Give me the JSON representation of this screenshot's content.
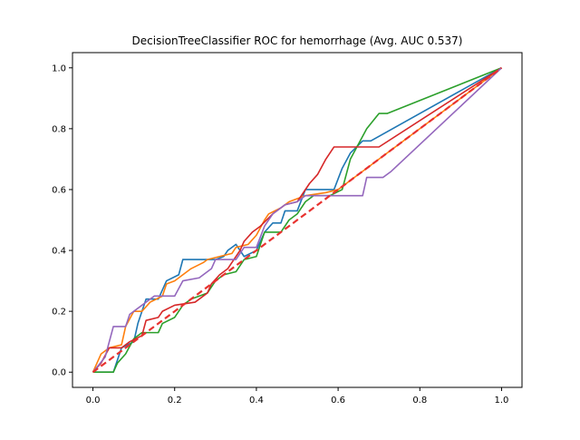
{
  "chart_data": {
    "type": "line",
    "title": "DecisionTreeClassifier ROC for hemorrhage (Avg. AUC 0.537)",
    "xlabel": "",
    "ylabel": "",
    "xlim": [
      -0.05,
      1.05
    ],
    "ylim": [
      -0.05,
      1.05
    ],
    "xticks": [
      "0.0",
      "0.2",
      "0.4",
      "0.6",
      "0.8",
      "1.0"
    ],
    "yticks": [
      "0.0",
      "0.2",
      "0.4",
      "0.6",
      "0.8",
      "1.0"
    ],
    "grid": false,
    "legend": "none",
    "series": [
      {
        "color": "#1f77b4",
        "style": "solid",
        "points": [
          [
            0,
            0
          ],
          [
            0.05,
            0
          ],
          [
            0.06,
            0.04
          ],
          [
            0.07,
            0.08
          ],
          [
            0.1,
            0.1
          ],
          [
            0.11,
            0.16
          ],
          [
            0.13,
            0.24
          ],
          [
            0.16,
            0.24
          ],
          [
            0.18,
            0.3
          ],
          [
            0.21,
            0.32
          ],
          [
            0.22,
            0.37
          ],
          [
            0.3,
            0.37
          ],
          [
            0.32,
            0.38
          ],
          [
            0.33,
            0.4
          ],
          [
            0.35,
            0.42
          ],
          [
            0.37,
            0.38
          ],
          [
            0.4,
            0.4
          ],
          [
            0.42,
            0.46
          ],
          [
            0.44,
            0.49
          ],
          [
            0.46,
            0.49
          ],
          [
            0.47,
            0.53
          ],
          [
            0.5,
            0.53
          ],
          [
            0.52,
            0.6
          ],
          [
            0.59,
            0.6
          ],
          [
            0.61,
            0.67
          ],
          [
            0.63,
            0.72
          ],
          [
            0.66,
            0.76
          ],
          [
            0.68,
            0.76
          ],
          [
            1,
            1
          ]
        ]
      },
      {
        "color": "#ff7f0e",
        "style": "solid",
        "points": [
          [
            0,
            0
          ],
          [
            0.02,
            0.06
          ],
          [
            0.04,
            0.08
          ],
          [
            0.07,
            0.09
          ],
          [
            0.08,
            0.15
          ],
          [
            0.1,
            0.2
          ],
          [
            0.12,
            0.2
          ],
          [
            0.14,
            0.23
          ],
          [
            0.17,
            0.25
          ],
          [
            0.18,
            0.29
          ],
          [
            0.2,
            0.3
          ],
          [
            0.22,
            0.32
          ],
          [
            0.24,
            0.34
          ],
          [
            0.27,
            0.36
          ],
          [
            0.28,
            0.37
          ],
          [
            0.31,
            0.38
          ],
          [
            0.34,
            0.39
          ],
          [
            0.35,
            0.41
          ],
          [
            0.38,
            0.42
          ],
          [
            0.4,
            0.45
          ],
          [
            0.42,
            0.5
          ],
          [
            0.43,
            0.52
          ],
          [
            0.46,
            0.54
          ],
          [
            0.48,
            0.56
          ],
          [
            0.5,
            0.57
          ],
          [
            0.52,
            0.58
          ],
          [
            0.57,
            0.59
          ],
          [
            0.6,
            0.6
          ],
          [
            0.64,
            0.64
          ],
          [
            0.67,
            0.67
          ],
          [
            0.7,
            0.7
          ],
          [
            1,
            1
          ]
        ]
      },
      {
        "color": "#2ca02c",
        "style": "solid",
        "points": [
          [
            0,
            0
          ],
          [
            0.05,
            0
          ],
          [
            0.06,
            0.03
          ],
          [
            0.08,
            0.06
          ],
          [
            0.1,
            0.11
          ],
          [
            0.12,
            0.13
          ],
          [
            0.16,
            0.13
          ],
          [
            0.17,
            0.16
          ],
          [
            0.2,
            0.18
          ],
          [
            0.22,
            0.22
          ],
          [
            0.24,
            0.24
          ],
          [
            0.28,
            0.26
          ],
          [
            0.3,
            0.3
          ],
          [
            0.32,
            0.32
          ],
          [
            0.35,
            0.33
          ],
          [
            0.37,
            0.37
          ],
          [
            0.4,
            0.38
          ],
          [
            0.42,
            0.46
          ],
          [
            0.46,
            0.46
          ],
          [
            0.48,
            0.5
          ],
          [
            0.5,
            0.52
          ],
          [
            0.52,
            0.56
          ],
          [
            0.54,
            0.58
          ],
          [
            0.58,
            0.58
          ],
          [
            0.61,
            0.6
          ],
          [
            0.63,
            0.7
          ],
          [
            0.67,
            0.8
          ],
          [
            0.7,
            0.85
          ],
          [
            0.72,
            0.85
          ],
          [
            1,
            1
          ]
        ]
      },
      {
        "color": "#d62728",
        "style": "solid",
        "points": [
          [
            0,
            0
          ],
          [
            0.02,
            0.03
          ],
          [
            0.04,
            0.08
          ],
          [
            0.07,
            0.08
          ],
          [
            0.09,
            0.1
          ],
          [
            0.12,
            0.12
          ],
          [
            0.13,
            0.17
          ],
          [
            0.16,
            0.18
          ],
          [
            0.17,
            0.2
          ],
          [
            0.2,
            0.22
          ],
          [
            0.25,
            0.23
          ],
          [
            0.28,
            0.26
          ],
          [
            0.29,
            0.29
          ],
          [
            0.31,
            0.32
          ],
          [
            0.33,
            0.34
          ],
          [
            0.36,
            0.4
          ],
          [
            0.37,
            0.43
          ],
          [
            0.39,
            0.46
          ],
          [
            0.41,
            0.48
          ],
          [
            0.44,
            0.52
          ],
          [
            0.47,
            0.55
          ],
          [
            0.5,
            0.56
          ],
          [
            0.53,
            0.62
          ],
          [
            0.55,
            0.65
          ],
          [
            0.57,
            0.7
          ],
          [
            0.59,
            0.74
          ],
          [
            0.7,
            0.74
          ],
          [
            1,
            1
          ]
        ]
      },
      {
        "color": "#9467bd",
        "style": "solid",
        "points": [
          [
            0,
            0
          ],
          [
            0.03,
            0.05
          ],
          [
            0.05,
            0.15
          ],
          [
            0.08,
            0.15
          ],
          [
            0.09,
            0.19
          ],
          [
            0.12,
            0.22
          ],
          [
            0.15,
            0.25
          ],
          [
            0.2,
            0.25
          ],
          [
            0.22,
            0.3
          ],
          [
            0.26,
            0.31
          ],
          [
            0.29,
            0.34
          ],
          [
            0.3,
            0.37
          ],
          [
            0.35,
            0.37
          ],
          [
            0.37,
            0.41
          ],
          [
            0.4,
            0.41
          ],
          [
            0.42,
            0.48
          ],
          [
            0.44,
            0.52
          ],
          [
            0.47,
            0.55
          ],
          [
            0.5,
            0.56
          ],
          [
            0.52,
            0.58
          ],
          [
            0.57,
            0.58
          ],
          [
            0.66,
            0.58
          ],
          [
            0.67,
            0.64
          ],
          [
            0.71,
            0.64
          ],
          [
            0.73,
            0.66
          ],
          [
            1,
            1
          ]
        ]
      },
      {
        "color": "#e8322f",
        "style": "dashed",
        "points": [
          [
            0,
            0
          ],
          [
            1,
            1
          ]
        ]
      }
    ]
  }
}
